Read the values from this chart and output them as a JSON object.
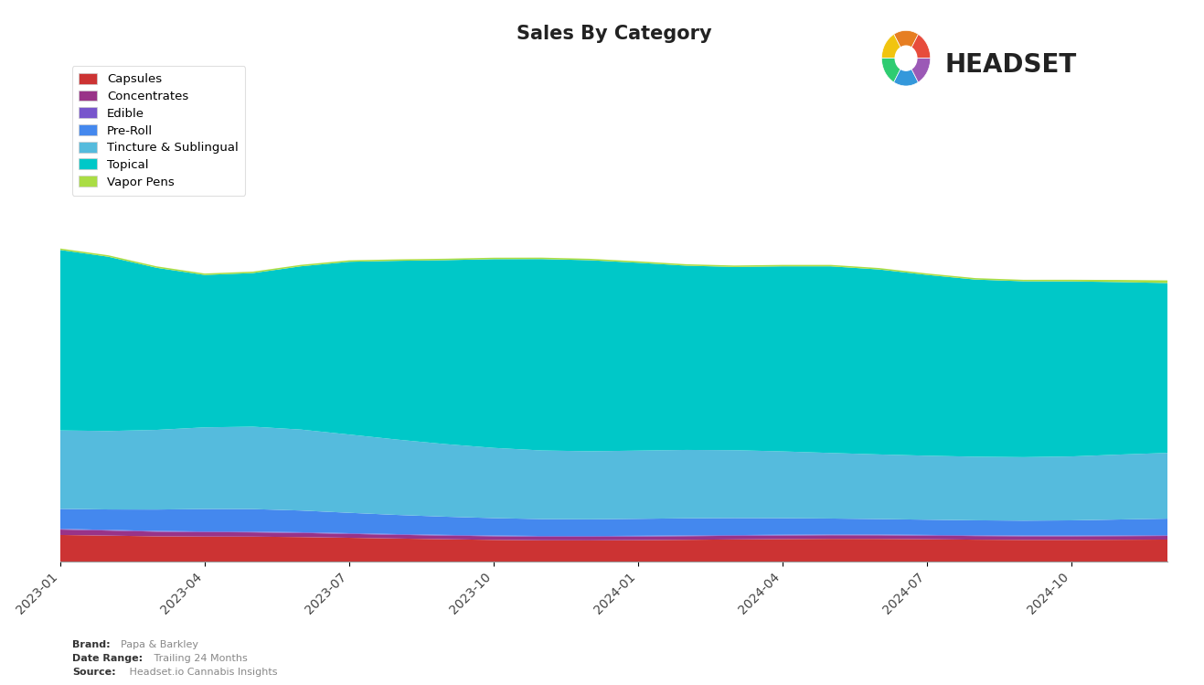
{
  "title": "Sales By Category",
  "categories": [
    "Capsules",
    "Concentrates",
    "Edible",
    "Pre-Roll",
    "Tincture & Sublingual",
    "Topical",
    "Vapor Pens"
  ],
  "colors": [
    "#cc3333",
    "#993388",
    "#7755cc",
    "#4488ee",
    "#55bbdd",
    "#00c8c8",
    "#aadd44"
  ],
  "brand_label": "Brand:",
  "brand_value": "Papa & Barkley",
  "date_label": "Date Range:",
  "date_value": " Trailing 24 Months",
  "source_label": "Source:",
  "source_value": " Headset.io Cannabis Insights",
  "x_tick_labels": [
    "2023-01",
    "2023-04",
    "2023-07",
    "2023-10",
    "2024-01",
    "2024-04",
    "2024-07",
    "2024-10"
  ],
  "capsules": [
    38,
    36,
    34,
    34,
    36,
    34,
    33,
    32,
    31,
    30,
    29,
    29,
    30,
    30,
    31,
    31,
    32,
    32,
    31,
    30,
    30,
    30,
    30,
    31
  ],
  "concentrates": [
    8,
    7,
    6,
    6,
    6,
    6,
    5,
    5,
    5,
    5,
    5,
    5,
    5,
    5,
    5,
    5,
    5,
    5,
    5,
    5,
    5,
    5,
    5,
    5
  ],
  "edible": [
    1,
    1,
    1,
    1,
    1,
    1,
    1,
    1,
    1,
    1,
    1,
    1,
    1,
    1,
    1,
    1,
    1,
    1,
    1,
    1,
    1,
    1,
    1,
    1
  ],
  "pre_roll": [
    28,
    26,
    30,
    32,
    33,
    30,
    28,
    26,
    25,
    24,
    23,
    22,
    24,
    24,
    24,
    23,
    22,
    21,
    21,
    21,
    20,
    20,
    22,
    24
  ],
  "tincture": [
    110,
    105,
    108,
    115,
    118,
    112,
    108,
    104,
    100,
    96,
    94,
    92,
    95,
    95,
    95,
    92,
    90,
    89,
    88,
    88,
    87,
    87,
    90,
    92
  ],
  "topical": [
    250,
    260,
    220,
    190,
    200,
    230,
    250,
    240,
    255,
    265,
    265,
    270,
    260,
    250,
    248,
    255,
    265,
    258,
    250,
    238,
    242,
    248,
    238,
    230
  ],
  "vapor_pens": [
    2,
    2,
    2,
    2,
    2,
    2,
    2,
    2,
    2,
    2,
    2,
    2,
    2,
    2,
    2,
    2,
    2,
    2,
    2,
    2,
    2,
    2,
    2,
    5
  ]
}
